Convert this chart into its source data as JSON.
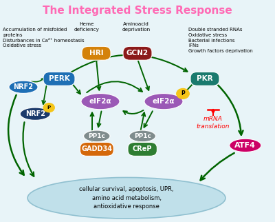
{
  "title": "The Integrated Stress Response",
  "title_color": "#FF69B4",
  "title_fontsize": 11,
  "bg_color": "#E8F4F8",
  "annotations": {
    "left_text": "Accumulation of misfolded\nproteins\nDisturbances in Ca²⁺ homeostasis\nOxidative stress",
    "heme_text": "Heme\ndeficiency",
    "amino_text": "Aminoacid\ndeprivation",
    "right_text": "Double stranded RNAs\nOxidative stress\nBacterial infections\nIFNs\nGrowth factors deprivation",
    "mrna_text": "mRNA\ntranslation"
  },
  "arrow_color": "#006400",
  "bg_color2": "#E8F4F8"
}
